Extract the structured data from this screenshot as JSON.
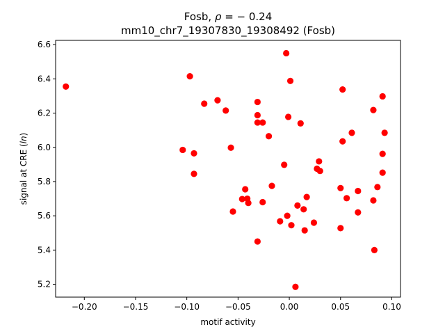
{
  "chart_data": {
    "type": "scatter",
    "title_line1": "Fosb, ρ = − 0.24",
    "title_line2": "mm10_chr7_19307830_19308492 (Fosb)",
    "xlabel": "motif activity",
    "ylabel": "signal at CRE (ln)",
    "xlim": [
      -0.228,
      0.1085
    ],
    "ylim": [
      5.125,
      6.625
    ],
    "xticks": [
      -0.2,
      -0.15,
      -0.1,
      -0.05,
      0.0,
      0.05,
      0.1
    ],
    "xtick_labels": [
      "−0.20",
      "−0.15",
      "−0.10",
      "−0.05",
      "0.00",
      "0.05",
      "0.10"
    ],
    "yticks": [
      5.2,
      5.4,
      5.6,
      5.8,
      6.0,
      6.2,
      6.4,
      6.6
    ],
    "ytick_labels": [
      "5.2",
      "5.4",
      "5.6",
      "5.8",
      "6.0",
      "6.2",
      "6.4",
      "6.6"
    ],
    "grid": false,
    "marker_color": "#ff0000",
    "series": [
      {
        "points": [
          [
            -0.218,
            6.355
          ],
          [
            -0.097,
            6.415
          ],
          [
            -0.104,
            5.985
          ],
          [
            -0.093,
            5.965
          ],
          [
            -0.093,
            5.845
          ],
          [
            -0.083,
            6.255
          ],
          [
            -0.07,
            6.275
          ],
          [
            -0.062,
            6.215
          ],
          [
            -0.057,
            5.998
          ],
          [
            -0.055,
            5.625
          ],
          [
            -0.046,
            5.698
          ],
          [
            -0.043,
            5.755
          ],
          [
            -0.041,
            5.7
          ],
          [
            -0.04,
            5.675
          ],
          [
            -0.031,
            6.265
          ],
          [
            -0.031,
            6.188
          ],
          [
            -0.031,
            6.145
          ],
          [
            -0.031,
            5.45
          ],
          [
            -0.026,
            6.145
          ],
          [
            -0.026,
            5.68
          ],
          [
            -0.02,
            6.065
          ],
          [
            -0.017,
            5.775
          ],
          [
            -0.009,
            5.568
          ],
          [
            -0.005,
            5.898
          ],
          [
            -0.003,
            6.55
          ],
          [
            -0.002,
            5.6
          ],
          [
            -0.001,
            6.178
          ],
          [
            0.001,
            6.388
          ],
          [
            0.002,
            5.545
          ],
          [
            0.006,
            5.185
          ],
          [
            0.008,
            5.66
          ],
          [
            0.011,
            6.14
          ],
          [
            0.014,
            5.638
          ],
          [
            0.015,
            5.515
          ],
          [
            0.017,
            5.71
          ],
          [
            0.024,
            5.56
          ],
          [
            0.027,
            5.875
          ],
          [
            0.029,
            5.918
          ],
          [
            0.03,
            5.862
          ],
          [
            0.05,
            5.762
          ],
          [
            0.05,
            5.528
          ],
          [
            0.052,
            6.338
          ],
          [
            0.052,
            6.035
          ],
          [
            0.056,
            5.703
          ],
          [
            0.061,
            6.085
          ],
          [
            0.067,
            5.745
          ],
          [
            0.067,
            5.62
          ],
          [
            0.082,
            6.218
          ],
          [
            0.082,
            5.69
          ],
          [
            0.083,
            5.4
          ],
          [
            0.086,
            5.768
          ],
          [
            0.091,
            6.298
          ],
          [
            0.091,
            5.962
          ],
          [
            0.091,
            5.852
          ],
          [
            0.093,
            6.085
          ]
        ]
      }
    ]
  }
}
